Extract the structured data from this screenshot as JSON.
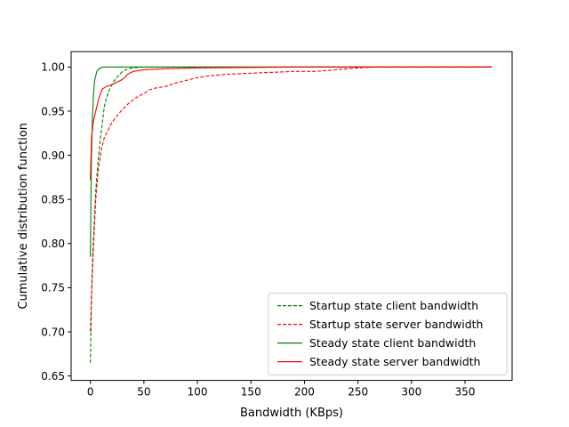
{
  "chart_data": {
    "type": "line",
    "title": "",
    "xlabel": "Bandwidth (KBps)",
    "ylabel": "Cumulative distribution function",
    "xlim": [
      -18,
      394
    ],
    "ylim": [
      0.645,
      1.0175
    ],
    "xticks": [
      0,
      50,
      100,
      150,
      200,
      250,
      300,
      350
    ],
    "yticks": [
      0.65,
      0.7,
      0.75,
      0.8,
      0.85,
      0.9,
      0.95,
      1.0
    ],
    "xtick_labels": [
      "0",
      "50",
      "100",
      "150",
      "200",
      "250",
      "300",
      "350"
    ],
    "ytick_labels": [
      "0.65",
      "0.70",
      "0.75",
      "0.80",
      "0.85",
      "0.90",
      "0.95",
      "1.00"
    ],
    "grid": false,
    "legend_position": "lower-right",
    "series": [
      {
        "name": "Startup state client bandwidth",
        "color": "#008000",
        "dash": "dashed",
        "points": [
          [
            0,
            0.665
          ],
          [
            0.5,
            0.7
          ],
          [
            1,
            0.74
          ],
          [
            2,
            0.78
          ],
          [
            3,
            0.81
          ],
          [
            5,
            0.86
          ],
          [
            7,
            0.89
          ],
          [
            9,
            0.915
          ],
          [
            11,
            0.935
          ],
          [
            13,
            0.955
          ],
          [
            15,
            0.965
          ],
          [
            18,
            0.975
          ],
          [
            22,
            0.984
          ],
          [
            26,
            0.99
          ],
          [
            30,
            0.995
          ],
          [
            35,
            0.998
          ],
          [
            40,
            0.999
          ],
          [
            50,
            1.0
          ],
          [
            375,
            1.0
          ]
        ]
      },
      {
        "name": "Startup state server bandwidth",
        "color": "#ff0000",
        "dash": "dashed",
        "points": [
          [
            0,
            0.7
          ],
          [
            1,
            0.74
          ],
          [
            3,
            0.8
          ],
          [
            5,
            0.85
          ],
          [
            7,
            0.88
          ],
          [
            10,
            0.905
          ],
          [
            13,
            0.92
          ],
          [
            17,
            0.93
          ],
          [
            20,
            0.937
          ],
          [
            25,
            0.945
          ],
          [
            30,
            0.952
          ],
          [
            35,
            0.958
          ],
          [
            40,
            0.963
          ],
          [
            45,
            0.967
          ],
          [
            50,
            0.97
          ],
          [
            55,
            0.974
          ],
          [
            60,
            0.976
          ],
          [
            70,
            0.978
          ],
          [
            80,
            0.982
          ],
          [
            90,
            0.985
          ],
          [
            100,
            0.988
          ],
          [
            110,
            0.99
          ],
          [
            130,
            0.992
          ],
          [
            150,
            0.993
          ],
          [
            170,
            0.994
          ],
          [
            190,
            0.995
          ],
          [
            210,
            0.995
          ],
          [
            220,
            0.996
          ],
          [
            230,
            0.997
          ],
          [
            240,
            0.998
          ],
          [
            250,
            0.999
          ],
          [
            265,
            1.0
          ],
          [
            375,
            1.0
          ]
        ]
      },
      {
        "name": "Steady state client bandwidth",
        "color": "#008000",
        "dash": "solid",
        "points": [
          [
            0,
            0.785
          ],
          [
            0.5,
            0.85
          ],
          [
            1,
            0.9
          ],
          [
            2,
            0.945
          ],
          [
            3,
            0.97
          ],
          [
            4,
            0.985
          ],
          [
            6,
            0.995
          ],
          [
            8,
            0.998
          ],
          [
            12,
            1.0
          ],
          [
            375,
            1.0
          ]
        ]
      },
      {
        "name": "Steady state server bandwidth",
        "color": "#ff0000",
        "dash": "solid",
        "points": [
          [
            0,
            0.872
          ],
          [
            1,
            0.92
          ],
          [
            3,
            0.94
          ],
          [
            5,
            0.95
          ],
          [
            8,
            0.965
          ],
          [
            11,
            0.975
          ],
          [
            15,
            0.978
          ],
          [
            20,
            0.98
          ],
          [
            25,
            0.983
          ],
          [
            30,
            0.986
          ],
          [
            35,
            0.992
          ],
          [
            40,
            0.995
          ],
          [
            50,
            0.997
          ],
          [
            70,
            0.998
          ],
          [
            100,
            0.999
          ],
          [
            150,
            0.9995
          ],
          [
            200,
            1.0
          ],
          [
            375,
            1.0
          ]
        ]
      }
    ]
  }
}
